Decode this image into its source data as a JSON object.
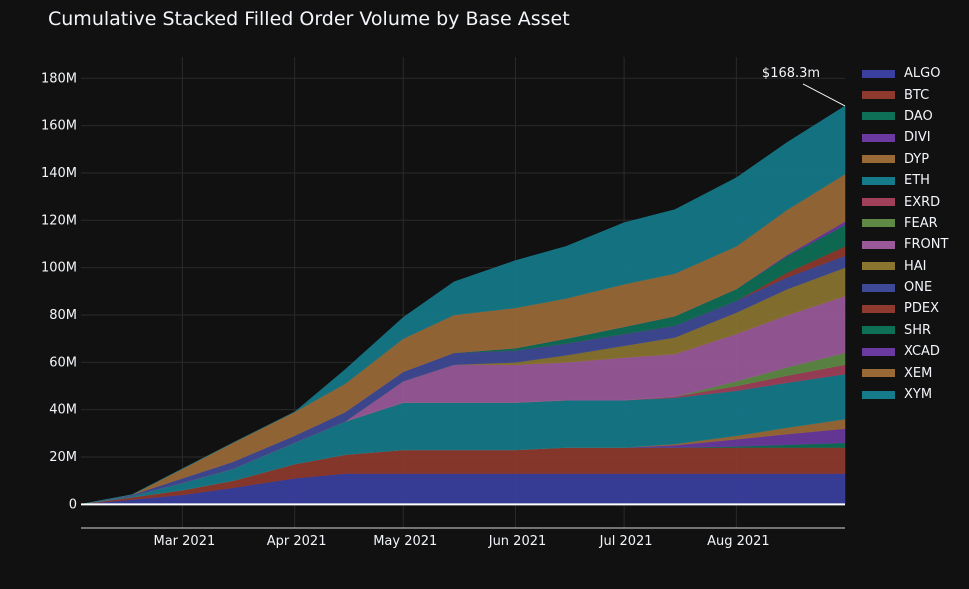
{
  "chart_data": {
    "type": "area",
    "title": "Cumulative Stacked Filled Order Volume by Base Asset",
    "xlabel": "",
    "ylabel": "",
    "ylim": [
      -10,
      189
    ],
    "yticks": [
      0,
      20,
      40,
      60,
      80,
      100,
      120,
      140,
      160,
      180
    ],
    "ytick_labels": [
      "0",
      "20M",
      "40M",
      "60M",
      "80M",
      "100M",
      "120M",
      "140M",
      "160M",
      "180M"
    ],
    "xlim": [
      "2021-02-01",
      "2021-08-31"
    ],
    "x": [
      "2021-02-01",
      "2021-02-15",
      "2021-03-01",
      "2021-03-15",
      "2021-04-01",
      "2021-04-15",
      "2021-05-01",
      "2021-05-15",
      "2021-06-01",
      "2021-06-15",
      "2021-07-01",
      "2021-07-15",
      "2021-08-01",
      "2021-08-15",
      "2021-08-31"
    ],
    "xticks": [
      "2021-03-01",
      "2021-04-01",
      "2021-05-01",
      "2021-06-01",
      "2021-07-01",
      "2021-08-01"
    ],
    "xtick_labels": [
      "Mar 2021",
      "Apr 2021",
      "May 2021",
      "Jun 2021",
      "Jul 2021",
      "Aug 2021"
    ],
    "series": [
      {
        "name": "ALGO",
        "color": "#3a3fa0",
        "values": [
          0,
          2,
          4,
          7,
          11,
          13,
          13,
          13,
          13,
          13,
          13,
          13,
          13,
          13,
          13
        ]
      },
      {
        "name": "BTC",
        "color": "#8e3a2e",
        "values": [
          0,
          1,
          2,
          3,
          6,
          8,
          10,
          10,
          10,
          11,
          11,
          11,
          11,
          11,
          11
        ]
      },
      {
        "name": "DAO",
        "color": "#0e7057",
        "values": [
          0,
          0,
          0,
          0,
          0,
          0,
          0,
          0,
          0,
          0,
          0,
          0,
          0.5,
          1.2,
          2
        ]
      },
      {
        "name": "DIVI",
        "color": "#6b3aa0",
        "values": [
          0,
          0,
          0,
          0,
          0,
          0,
          0,
          0,
          0,
          0,
          0,
          1,
          3,
          4.5,
          6
        ]
      },
      {
        "name": "DYP",
        "color": "#9a6a36",
        "values": [
          0,
          0,
          0,
          0,
          0,
          0,
          0,
          0,
          0,
          0,
          0,
          0.5,
          1.5,
          2.7,
          4
        ]
      },
      {
        "name": "ETH",
        "color": "#157a8a",
        "values": [
          0,
          0.5,
          3,
          5,
          9,
          14,
          20,
          20,
          20,
          20,
          20,
          19.5,
          19,
          19,
          19
        ]
      },
      {
        "name": "EXRD",
        "color": "#a0405a",
        "values": [
          0,
          0,
          0,
          0,
          0,
          0,
          0,
          0,
          0,
          0,
          0,
          0.5,
          2,
          3,
          4
        ]
      },
      {
        "name": "FEAR",
        "color": "#5e8a45",
        "values": [
          0,
          0,
          0,
          0,
          0,
          0,
          0,
          0,
          0,
          0,
          0,
          0,
          2,
          3.5,
          5
        ]
      },
      {
        "name": "FRONT",
        "color": "#9a5a9a",
        "values": [
          0,
          0,
          0,
          0,
          0,
          0,
          9,
          16,
          16,
          16,
          18,
          18,
          20,
          22,
          24
        ]
      },
      {
        "name": "HAI",
        "color": "#8a7530",
        "values": [
          0,
          0,
          0,
          0,
          0,
          0,
          0,
          0,
          1,
          3,
          5,
          7,
          9,
          11,
          12
        ]
      },
      {
        "name": "ONE",
        "color": "#3e4a96",
        "values": [
          0,
          0.5,
          2,
          3,
          3,
          4,
          4,
          5,
          5,
          5,
          5,
          5,
          5,
          5,
          5
        ]
      },
      {
        "name": "PDEX",
        "color": "#8e3a2e",
        "values": [
          0,
          0,
          0,
          0,
          0,
          0,
          0,
          0,
          0,
          0,
          0,
          0,
          0,
          2,
          4
        ]
      },
      {
        "name": "SHR",
        "color": "#0e7057",
        "values": [
          0,
          0,
          0,
          0,
          0,
          0,
          0,
          0,
          1,
          2,
          3,
          4,
          5,
          7,
          9
        ]
      },
      {
        "name": "XCAD",
        "color": "#6b3aa0",
        "values": [
          0,
          0,
          0,
          0,
          0,
          0,
          0,
          0,
          0,
          0,
          0,
          0,
          0,
          0.5,
          1.5
        ]
      },
      {
        "name": "XEM",
        "color": "#9a6a36",
        "values": [
          0,
          0,
          4,
          8,
          10,
          12,
          14,
          16,
          17,
          17,
          18,
          18,
          18,
          19,
          20
        ]
      },
      {
        "name": "XYM",
        "color": "#157a8a",
        "values": [
          0,
          0,
          0,
          0,
          0,
          6,
          9,
          14,
          20,
          22,
          26,
          27,
          29,
          28.5,
          28.8
        ]
      }
    ],
    "annotation": {
      "text": "$168.3m",
      "x": "2021-08-31",
      "y": 168.3
    },
    "legend_position": "right",
    "grid": true
  }
}
